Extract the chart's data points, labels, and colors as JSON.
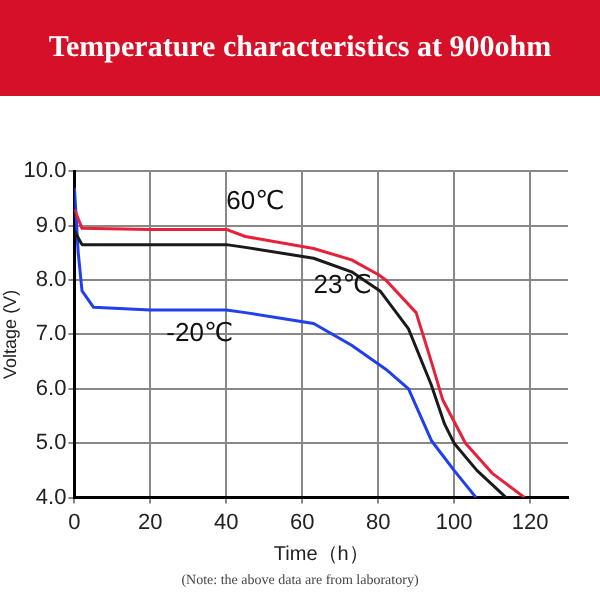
{
  "chart_data": {
    "type": "line",
    "title": "Temperature characteristics at 900ohm",
    "xlabel": "Time（h）",
    "ylabel": "Voltage (V)",
    "xlim": [
      0,
      130
    ],
    "xticks": [
      0,
      20,
      40,
      60,
      80,
      100,
      120
    ],
    "ylim": [
      4,
      10
    ],
    "yticks": [
      {
        "value": 4,
        "label": "4.0"
      },
      {
        "value": 5,
        "label": "5.0"
      },
      {
        "value": 6,
        "label": "6.0"
      },
      {
        "value": 7,
        "label": "7.0"
      },
      {
        "value": 8,
        "label": "8.0"
      },
      {
        "value": 9,
        "label": "9.0"
      },
      {
        "value": 10,
        "label": "10.0"
      }
    ],
    "grid": true,
    "legend": false,
    "marker": "none",
    "line_style": "solid",
    "annotations": [
      "(Note: the above data are from laboratory)"
    ],
    "series": [
      {
        "name": "60℃",
        "color": "#e8203a",
        "x": [
          0,
          2,
          20,
          40,
          45,
          63,
          73,
          80,
          82,
          90,
          94,
          97,
          103,
          110,
          118.6
        ],
        "values": [
          9.3,
          8.95,
          8.93,
          8.93,
          8.8,
          8.58,
          8.37,
          8.1,
          8.0,
          7.4,
          6.5,
          5.8,
          5.0,
          4.45,
          4.0
        ]
      },
      {
        "name": "23℃",
        "color": "#1a1a1a",
        "x": [
          0,
          2,
          20,
          40,
          45,
          63,
          73,
          80.5,
          88,
          94,
          97.5,
          100,
          106,
          113.7
        ],
        "values": [
          8.9,
          8.65,
          8.65,
          8.65,
          8.6,
          8.4,
          8.15,
          7.8,
          7.1,
          6.07,
          5.35,
          5.0,
          4.5,
          4.0
        ]
      },
      {
        "name": "-20℃",
        "color": "#1f3ff0",
        "x": [
          0,
          1,
          2,
          5,
          20,
          40,
          45,
          63,
          73,
          82,
          88,
          94,
          100,
          105.8
        ],
        "values": [
          9.7,
          8.5,
          7.8,
          7.5,
          7.45,
          7.45,
          7.4,
          7.2,
          6.8,
          6.36,
          6.0,
          5.05,
          4.5,
          4.0
        ]
      }
    ]
  }
}
